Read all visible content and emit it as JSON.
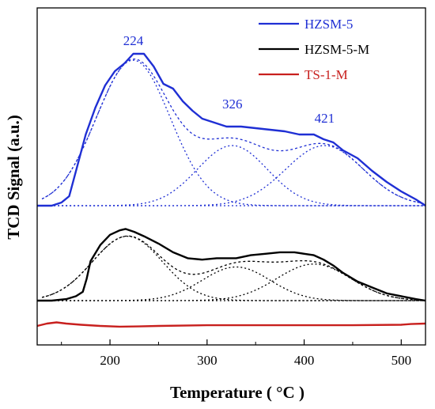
{
  "chart_data": {
    "type": "line",
    "xlabel": "Temperature ( °C )",
    "ylabel": "TCD Signal (a.u.)",
    "xlim": [
      125,
      525
    ],
    "xticks": [
      200,
      300,
      400,
      500
    ],
    "y_ticks_shown": false,
    "grid": false,
    "legend_position": "top-right",
    "colors": {
      "HZSM-5": "#1f2fd4",
      "HZSM-5-M": "#000000",
      "TS-1-M": "#c8201e"
    },
    "series": [
      {
        "name": "HZSM-5",
        "color": "#1f2fd4",
        "x": [
          125,
          140,
          150,
          158,
          165,
          175,
          185,
          195,
          205,
          215,
          224,
          235,
          245,
          255,
          265,
          275,
          285,
          295,
          305,
          320,
          335,
          350,
          365,
          380,
          395,
          410,
          420,
          430,
          440,
          455,
          470,
          485,
          500,
          515,
          525
        ],
        "y": [
          0.0,
          0.0,
          0.02,
          0.06,
          0.22,
          0.45,
          0.62,
          0.76,
          0.85,
          0.9,
          0.96,
          0.96,
          0.88,
          0.77,
          0.74,
          0.66,
          0.6,
          0.55,
          0.53,
          0.5,
          0.5,
          0.49,
          0.48,
          0.47,
          0.45,
          0.45,
          0.42,
          0.4,
          0.35,
          0.3,
          0.22,
          0.15,
          0.09,
          0.04,
          0.0
        ]
      },
      {
        "name": "HZSM-5-M",
        "color": "#000000",
        "x": [
          125,
          140,
          155,
          165,
          172,
          176,
          180,
          190,
          200,
          210,
          216,
          225,
          235,
          250,
          265,
          280,
          295,
          310,
          330,
          345,
          360,
          375,
          390,
          400,
          410,
          420,
          430,
          440,
          455,
          470,
          485,
          500,
          515,
          525
        ],
        "y": [
          0.0,
          0.0,
          0.01,
          0.03,
          0.06,
          0.15,
          0.27,
          0.38,
          0.45,
          0.48,
          0.49,
          0.47,
          0.44,
          0.39,
          0.33,
          0.29,
          0.28,
          0.29,
          0.29,
          0.31,
          0.32,
          0.33,
          0.33,
          0.32,
          0.31,
          0.28,
          0.24,
          0.19,
          0.13,
          0.09,
          0.05,
          0.03,
          0.01,
          0.0
        ]
      },
      {
        "name": "TS-1-M",
        "color": "#c8201e",
        "x": [
          125,
          135,
          145,
          155,
          170,
          190,
          210,
          230,
          250,
          300,
          350,
          400,
          450,
          500,
          510,
          525
        ],
        "y": [
          0.0,
          0.01,
          0.015,
          0.01,
          0.005,
          0.0,
          -0.003,
          -0.002,
          0.0,
          0.003,
          0.003,
          0.003,
          0.003,
          0.005,
          0.008,
          0.01
        ]
      }
    ],
    "deconvolution_peaks": [
      {
        "series": "HZSM-5",
        "centers": [
          224,
          326,
          421
        ],
        "labels": [
          "224",
          "326",
          "421"
        ]
      },
      {
        "series": "HZSM-5-M",
        "centers": [
          218,
          330,
          410
        ]
      }
    ]
  }
}
